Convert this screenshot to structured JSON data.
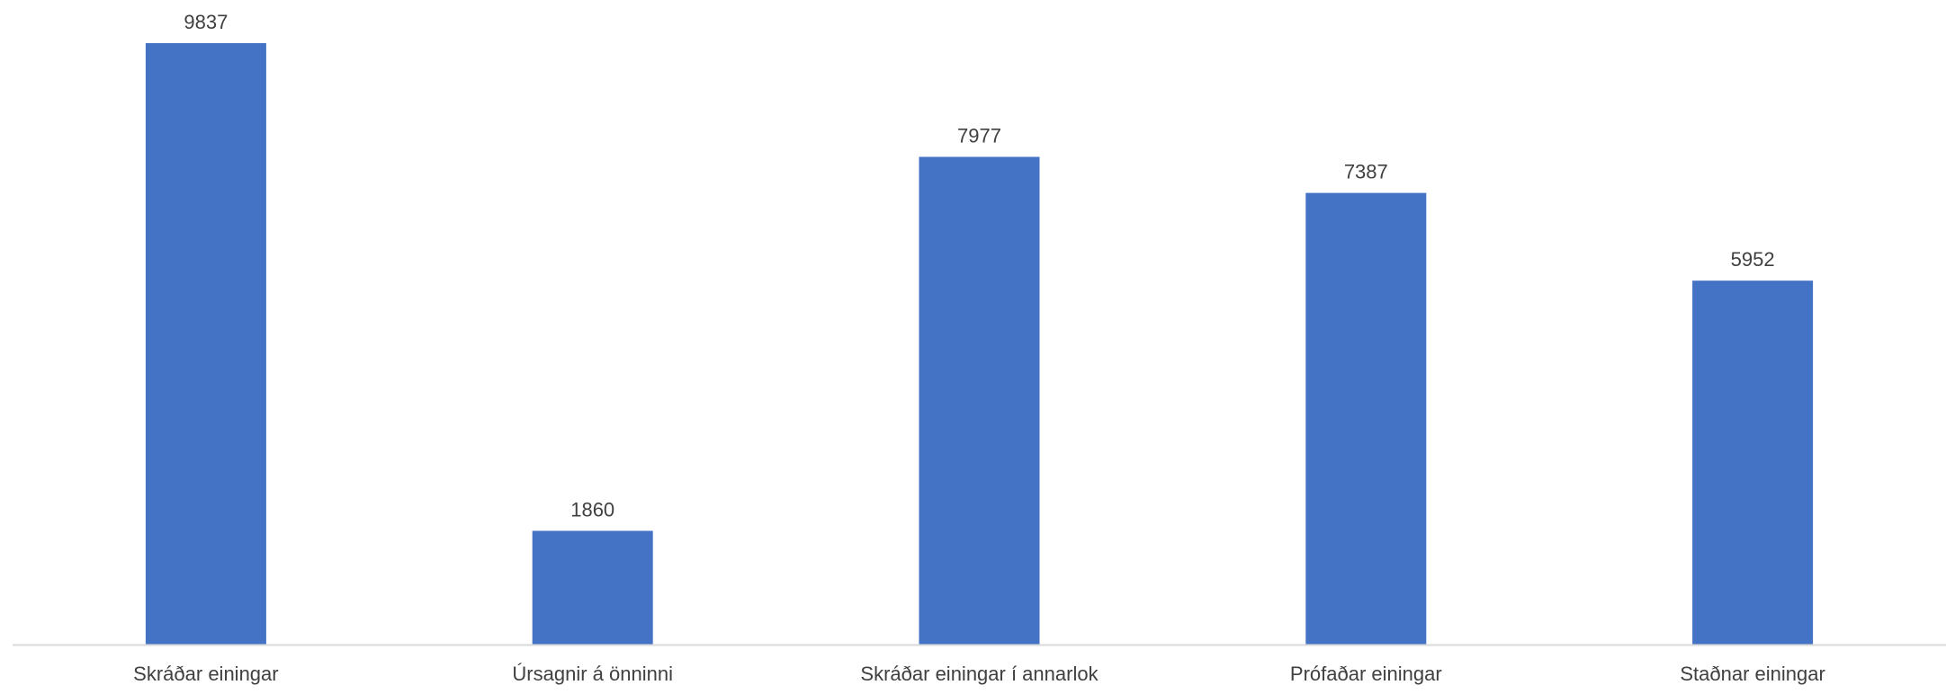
{
  "chart_data": {
    "type": "bar",
    "title": "",
    "xlabel": "",
    "ylabel": "",
    "categories": [
      "Skráðar einingar",
      "Úrsagnir á önninni",
      "Skráðar einingar í annarlok",
      "Prófaðar einingar",
      "Staðnar einingar"
    ],
    "values": [
      9837,
      1860,
      7977,
      7387,
      5952
    ],
    "data_labels": [
      "9837",
      "1860",
      "7977",
      "7387",
      "5952"
    ],
    "ylim": [
      0,
      9837
    ],
    "grid": false,
    "legend": "none",
    "bar_color": "#4472C4",
    "axis_color": "#D9D9D9",
    "text_color": "#404040"
  }
}
